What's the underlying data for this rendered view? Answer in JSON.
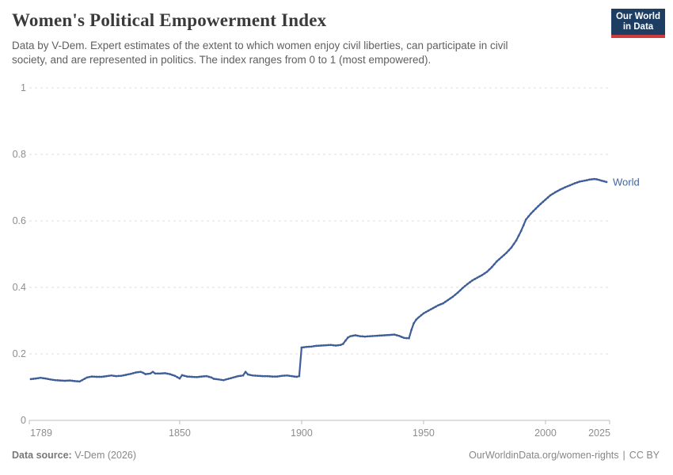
{
  "header": {
    "title": "Women's Political Empowerment Index",
    "subtitle": "Data by V-Dem. Expert estimates of the extent to which women enjoy civil liberties, can participate in civil\nsociety, and are represented in politics. The index ranges from 0 to 1 (most empowered).",
    "logo": {
      "line1": "Our World",
      "line2": "in Data",
      "bg_color": "#1d3d63",
      "accent_color": "#cf3c3e"
    }
  },
  "chart_data": {
    "type": "line",
    "title": "Women's Political Empowerment Index",
    "xlabel": "",
    "ylabel": "",
    "xlim": [
      1789,
      2025
    ],
    "ylim": [
      0,
      1
    ],
    "x_ticks": [
      1789,
      1850,
      1900,
      1950,
      2000,
      2025
    ],
    "y_ticks": [
      0,
      0.2,
      0.4,
      0.6,
      0.8,
      1
    ],
    "grid": "horizontal dashed",
    "legend_position": "end-of-line label",
    "colors": {
      "line": "#3f5e99",
      "entity_label": "#4166a0",
      "gridline": "#dedede",
      "axis": "#bcbcbc",
      "tick_label": "#8e8e8e"
    },
    "series": [
      {
        "name": "World",
        "points": [
          [
            1789,
            0.124
          ],
          [
            1791,
            0.126
          ],
          [
            1793,
            0.128
          ],
          [
            1795,
            0.126
          ],
          [
            1797,
            0.123
          ],
          [
            1799,
            0.121
          ],
          [
            1801,
            0.12
          ],
          [
            1803,
            0.119
          ],
          [
            1805,
            0.12
          ],
          [
            1807,
            0.118
          ],
          [
            1809,
            0.117
          ],
          [
            1810,
            0.121
          ],
          [
            1812,
            0.129
          ],
          [
            1814,
            0.132
          ],
          [
            1816,
            0.131
          ],
          [
            1818,
            0.131
          ],
          [
            1820,
            0.133
          ],
          [
            1822,
            0.135
          ],
          [
            1824,
            0.133
          ],
          [
            1826,
            0.134
          ],
          [
            1828,
            0.137
          ],
          [
            1830,
            0.14
          ],
          [
            1832,
            0.144
          ],
          [
            1834,
            0.146
          ],
          [
            1835,
            0.143
          ],
          [
            1836,
            0.139
          ],
          [
            1838,
            0.141
          ],
          [
            1839,
            0.146
          ],
          [
            1840,
            0.141
          ],
          [
            1842,
            0.141
          ],
          [
            1844,
            0.142
          ],
          [
            1846,
            0.139
          ],
          [
            1848,
            0.134
          ],
          [
            1850,
            0.126
          ],
          [
            1851,
            0.136
          ],
          [
            1853,
            0.132
          ],
          [
            1855,
            0.131
          ],
          [
            1857,
            0.13
          ],
          [
            1859,
            0.132
          ],
          [
            1861,
            0.133
          ],
          [
            1863,
            0.129
          ],
          [
            1864,
            0.125
          ],
          [
            1866,
            0.123
          ],
          [
            1868,
            0.121
          ],
          [
            1870,
            0.125
          ],
          [
            1872,
            0.129
          ],
          [
            1874,
            0.133
          ],
          [
            1876,
            0.135
          ],
          [
            1877,
            0.146
          ],
          [
            1878,
            0.138
          ],
          [
            1880,
            0.135
          ],
          [
            1882,
            0.134
          ],
          [
            1884,
            0.133
          ],
          [
            1886,
            0.133
          ],
          [
            1888,
            0.132
          ],
          [
            1890,
            0.132
          ],
          [
            1892,
            0.134
          ],
          [
            1894,
            0.135
          ],
          [
            1896,
            0.133
          ],
          [
            1898,
            0.131
          ],
          [
            1899,
            0.133
          ],
          [
            1900,
            0.219
          ],
          [
            1902,
            0.221
          ],
          [
            1904,
            0.222
          ],
          [
            1906,
            0.224
          ],
          [
            1908,
            0.225
          ],
          [
            1910,
            0.226
          ],
          [
            1912,
            0.227
          ],
          [
            1914,
            0.225
          ],
          [
            1916,
            0.227
          ],
          [
            1917,
            0.23
          ],
          [
            1918,
            0.24
          ],
          [
            1919,
            0.249
          ],
          [
            1920,
            0.253
          ],
          [
            1922,
            0.256
          ],
          [
            1924,
            0.253
          ],
          [
            1926,
            0.252
          ],
          [
            1928,
            0.253
          ],
          [
            1930,
            0.254
          ],
          [
            1932,
            0.255
          ],
          [
            1934,
            0.256
          ],
          [
            1936,
            0.257
          ],
          [
            1938,
            0.258
          ],
          [
            1940,
            0.254
          ],
          [
            1942,
            0.248
          ],
          [
            1944,
            0.247
          ],
          [
            1945,
            0.272
          ],
          [
            1946,
            0.292
          ],
          [
            1947,
            0.303
          ],
          [
            1948,
            0.31
          ],
          [
            1950,
            0.322
          ],
          [
            1952,
            0.33
          ],
          [
            1954,
            0.338
          ],
          [
            1956,
            0.346
          ],
          [
            1958,
            0.352
          ],
          [
            1960,
            0.362
          ],
          [
            1962,
            0.372
          ],
          [
            1964,
            0.384
          ],
          [
            1966,
            0.398
          ],
          [
            1968,
            0.41
          ],
          [
            1970,
            0.421
          ],
          [
            1972,
            0.429
          ],
          [
            1974,
            0.437
          ],
          [
            1976,
            0.447
          ],
          [
            1978,
            0.461
          ],
          [
            1980,
            0.478
          ],
          [
            1982,
            0.491
          ],
          [
            1984,
            0.504
          ],
          [
            1986,
            0.52
          ],
          [
            1988,
            0.541
          ],
          [
            1990,
            0.57
          ],
          [
            1992,
            0.604
          ],
          [
            1994,
            0.622
          ],
          [
            1996,
            0.637
          ],
          [
            1998,
            0.651
          ],
          [
            2000,
            0.664
          ],
          [
            2002,
            0.677
          ],
          [
            2004,
            0.686
          ],
          [
            2006,
            0.694
          ],
          [
            2008,
            0.701
          ],
          [
            2010,
            0.707
          ],
          [
            2012,
            0.713
          ],
          [
            2014,
            0.718
          ],
          [
            2016,
            0.721
          ],
          [
            2018,
            0.724
          ],
          [
            2020,
            0.726
          ],
          [
            2021,
            0.725
          ],
          [
            2022,
            0.723
          ],
          [
            2023,
            0.721
          ],
          [
            2024,
            0.719
          ],
          [
            2025,
            0.717
          ]
        ]
      }
    ]
  },
  "footer": {
    "source_label": "Data source:",
    "source_value": "V-Dem (2026)",
    "url": "OurWorldinData.org/women-rights",
    "separator": "|",
    "license": "CC BY"
  }
}
